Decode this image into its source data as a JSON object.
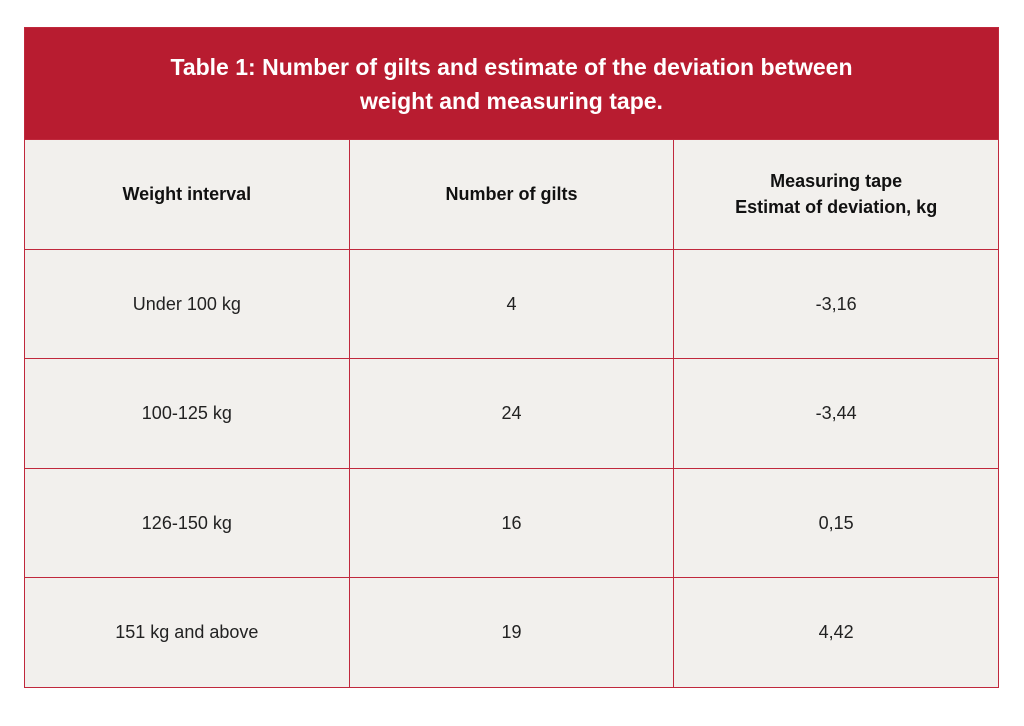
{
  "title": "Table 1: Number of gilts and estimate of the deviation between weight and measuring tape.",
  "headers": [
    "Weight interval",
    "Number of gilts",
    "Measuring tape\nEstimat of deviation, kg"
  ],
  "rows": [
    [
      "Under 100 kg",
      "4",
      "-3,16"
    ],
    [
      "100-125 kg",
      "24",
      "-3,44"
    ],
    [
      "126-150 kg",
      "16",
      "0,15"
    ],
    [
      "151 kg and above",
      "19",
      "4,42"
    ]
  ]
}
